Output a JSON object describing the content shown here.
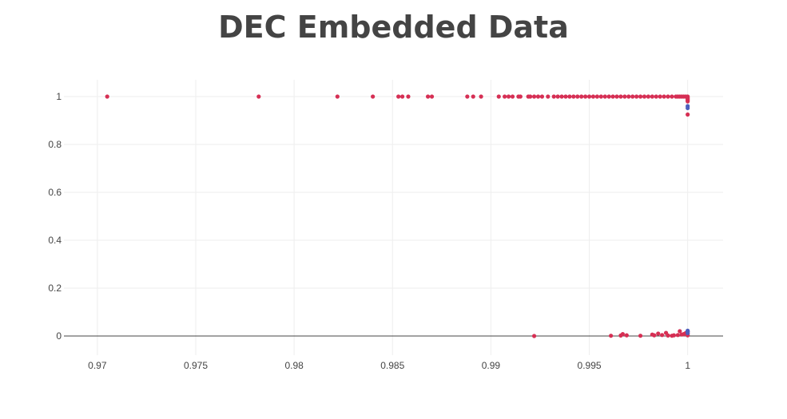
{
  "colors": {
    "series_red": "#d62f54",
    "series_blue": "#4d5fbd",
    "grid": "#eeeeee",
    "zeroline": "#444444",
    "text": "#444444"
  },
  "chart_data": {
    "type": "scatter",
    "title": "DEC Embedded Data",
    "xlabel": "",
    "ylabel": "",
    "xlim": [
      0.9683,
      1.0018
    ],
    "ylim": [
      -0.08,
      1.07
    ],
    "xticks": [
      0.97,
      0.975,
      0.98,
      0.985,
      0.99,
      0.995,
      1
    ],
    "xtick_labels": [
      "0.97",
      "0.975",
      "0.98",
      "0.985",
      "0.99",
      "0.995",
      "1"
    ],
    "yticks": [
      0,
      0.2,
      0.4,
      0.6,
      0.8,
      1
    ],
    "ytick_labels": [
      "0",
      "0.2",
      "0.4",
      "0.6",
      "0.8",
      "1"
    ],
    "grid": true,
    "legend": "none",
    "series": [
      {
        "color": "#d62f54",
        "x": [
          0.9705,
          0.9782,
          0.9822,
          0.984,
          0.9853,
          0.9855,
          0.9858,
          0.9868,
          0.987,
          0.9888,
          0.9891,
          0.9895,
          0.9904,
          0.9907,
          0.9909,
          0.9911,
          0.9914,
          0.9915,
          0.9919,
          0.992,
          0.9922,
          0.9924,
          0.9926,
          0.9929,
          0.9932,
          0.9934,
          0.9936,
          0.9938,
          0.994,
          0.9942,
          0.9944,
          0.9946,
          0.9948,
          0.995,
          0.9952,
          0.9954,
          0.9956,
          0.9958,
          0.996,
          0.9962,
          0.9964,
          0.9966,
          0.9968,
          0.997,
          0.9972,
          0.9974,
          0.9976,
          0.9978,
          0.998,
          0.9982,
          0.9984,
          0.9986,
          0.9988,
          0.999,
          0.9992,
          0.9994,
          0.9995,
          0.9996,
          0.9997,
          0.9998,
          0.9999,
          1.0,
          1.0,
          1.0,
          1.0,
          1.0,
          1.0,
          0.9922,
          0.9961,
          0.9966,
          0.9967,
          0.9969,
          0.9976,
          0.9982,
          0.9983,
          0.9985,
          0.9987,
          0.9989,
          0.999,
          0.9992,
          0.9993,
          0.9995,
          0.9996,
          0.9997,
          0.9998,
          0.9999,
          1.0,
          1.0,
          1.0
        ],
        "y": [
          1,
          1,
          1,
          1,
          1,
          1,
          1,
          1,
          1,
          1,
          1,
          1,
          1,
          1,
          1,
          1,
          1,
          1,
          1,
          1,
          1,
          1,
          1,
          1,
          1,
          1,
          1,
          1,
          1,
          1,
          1,
          1,
          1,
          1,
          1,
          1,
          1,
          1,
          1,
          1,
          1,
          1,
          1,
          1,
          1,
          1,
          1,
          1,
          1,
          1,
          1,
          1,
          1,
          1,
          1,
          1,
          1,
          1,
          1,
          1,
          1,
          1,
          0.995,
          0.99,
          0.985,
          0.98,
          0.925,
          0.0,
          0.001,
          0.002,
          0.008,
          0.003,
          0.001,
          0.006,
          0.003,
          0.01,
          0.004,
          0.013,
          0.002,
          0.001,
          0.003,
          0.004,
          0.02,
          0.006,
          0.008,
          0.012,
          0.003,
          0.01,
          0.018
        ]
      },
      {
        "color": "#4d5fbd",
        "x": [
          1.0,
          1.0,
          1.0,
          1.0,
          1.0
        ],
        "y": [
          0.96,
          0.952,
          0.018,
          0.022,
          0.012
        ]
      }
    ]
  }
}
